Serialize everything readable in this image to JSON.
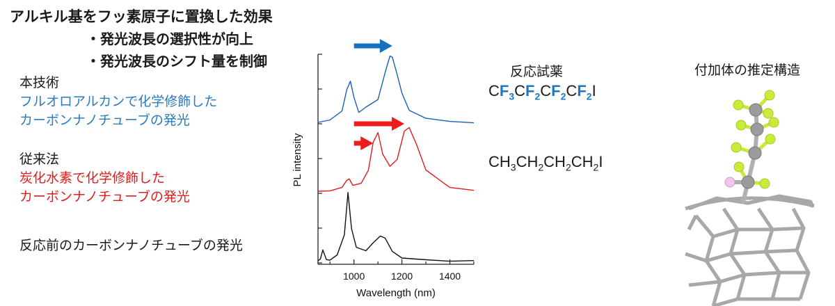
{
  "title": "アルキル基をフッ素原子に置換した効果",
  "bullets": [
    "・発光波長の選択性が向上",
    "・発光波長のシフト量を制御"
  ],
  "this_tech": {
    "heading": "本技術",
    "lines": [
      "フルオロアルカンで化学修飾した",
      "カーボンナノチューブの発光"
    ]
  },
  "conventional": {
    "heading": "従来法",
    "lines": [
      "炭化水素で化学修飾した",
      "カーボンナノチューブの発光"
    ]
  },
  "pristine_label": "反応前のカーボンナノチューブの発光",
  "reagent_heading": "反応試薬",
  "adduct_heading": "付加体の推定構造",
  "formula_blue": {
    "c1": "C",
    "f3": "F",
    "s3": "3",
    "c2": "C",
    "f2a": "F",
    "s2a": "2",
    "c3": "C",
    "f2b": "F",
    "s2b": "2",
    "c4": "C",
    "f2c": "F",
    "s2c": "2",
    "i": "I"
  },
  "formula_red": {
    "c1": "CH",
    "s3": "3",
    "c2": "CH",
    "s2a": "2",
    "c3": "CH",
    "s2b": "2",
    "c4": "CH",
    "s2c": "2",
    "i": "I"
  },
  "colors": {
    "blue": "#1b5fb5",
    "red": "#e31b1b",
    "black": "#111111",
    "arrow_blue": "#1570bd",
    "arrow_red": "#ee1c1c"
  },
  "chart_data": {
    "type": "line",
    "xlabel": "Wavelength (nm)",
    "ylabel": "PL intensity",
    "xlim": [
      850,
      1500
    ],
    "xticks": [
      1000,
      1200,
      1400
    ],
    "x_tick_labels": [
      "1000",
      "1200",
      "1400"
    ],
    "series": [
      {
        "color": "blue",
        "x": [
          850,
          900,
          950,
          970,
          985,
          1000,
          1020,
          1050,
          1100,
          1130,
          1150,
          1160,
          1180,
          1200,
          1230,
          1300,
          1400,
          1500
        ],
        "y": [
          0.02,
          0.06,
          0.18,
          0.5,
          0.62,
          0.38,
          0.17,
          0.24,
          0.35,
          0.75,
          0.98,
          0.97,
          0.72,
          0.44,
          0.2,
          0.08,
          0.03,
          0.02
        ]
      },
      {
        "color": "red",
        "x": [
          850,
          900,
          950,
          970,
          980,
          995,
          1030,
          1060,
          1080,
          1100,
          1120,
          1150,
          1180,
          1210,
          1230,
          1260,
          1300,
          1400,
          1500
        ],
        "y": [
          0.02,
          0.03,
          0.07,
          0.18,
          0.2,
          0.1,
          0.14,
          0.32,
          0.72,
          0.87,
          0.55,
          0.38,
          0.48,
          0.88,
          0.94,
          0.7,
          0.32,
          0.08,
          0.03
        ]
      },
      {
        "color": "black",
        "x": [
          850,
          860,
          870,
          885,
          900,
          930,
          960,
          975,
          990,
          1010,
          1050,
          1080,
          1110,
          1130,
          1160,
          1200,
          1300,
          1400,
          1500
        ],
        "y": [
          0.02,
          0.05,
          0.17,
          0.04,
          0.03,
          0.1,
          0.4,
          1.0,
          0.48,
          0.22,
          0.16,
          0.28,
          0.38,
          0.34,
          0.16,
          0.06,
          0.03,
          0.02,
          0.02
        ]
      }
    ],
    "shift_arrows": [
      {
        "color": "blue",
        "from": 1000,
        "to": 1160
      },
      {
        "color": "red",
        "from": 1000,
        "to": 1210
      },
      {
        "color": "red",
        "from": 1000,
        "to": 1080
      }
    ]
  }
}
